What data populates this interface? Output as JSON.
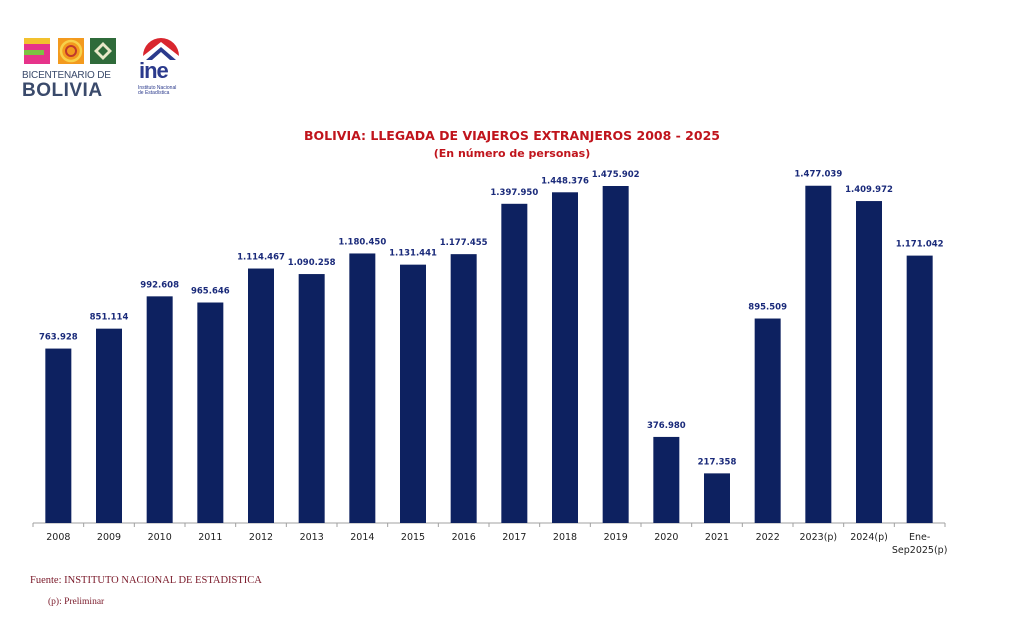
{
  "logos": {
    "bicentenario": {
      "line1": "BICENTENARIO DE",
      "line2": "BOLIVIA"
    },
    "ine": {
      "word": "ine",
      "sub1": "Instituto Nacional",
      "sub2": "de Estadística"
    }
  },
  "chart_data": {
    "type": "bar",
    "title": "BOLIVIA: LLEGADA DE VIAJEROS EXTRANJEROS  2008 - 2025",
    "subtitle": "(En número de personas)",
    "xlabel": "",
    "ylabel": "",
    "ylim": [
      0,
      1600000
    ],
    "grid": false,
    "legend": "none",
    "bar_color": "#0d2160",
    "label_color": "#1a2a7a",
    "categories": [
      "2008",
      "2009",
      "2010",
      "2011",
      "2012",
      "2013",
      "2014",
      "2015",
      "2016",
      "2017",
      "2018",
      "2019",
      "2020",
      "2021",
      "2022",
      "2023(p)",
      "2024(p)",
      "Ene-|Sep2025(p)"
    ],
    "values": [
      763928,
      851114,
      992608,
      965646,
      1114467,
      1090258,
      1180450,
      1131441,
      1177455,
      1397950,
      1448376,
      1475902,
      376980,
      217358,
      895509,
      1477039,
      1409972,
      1171042
    ],
    "data_labels": [
      "763.928",
      "851.114",
      "992.608",
      "965.646",
      "1.114.467",
      "1.090.258",
      "1.180.450",
      "1.131.441",
      "1.177.455",
      "1.397.950",
      "1.448.376",
      "1.475.902",
      "376.980",
      "217.358",
      "895.509",
      "1.477.039",
      "1.409.972",
      "1.171.042"
    ]
  },
  "footer": {
    "source": "Fuente: INSTITUTO NACIONAL DE ESTADISTICA",
    "note": "(p): Preliminar"
  }
}
